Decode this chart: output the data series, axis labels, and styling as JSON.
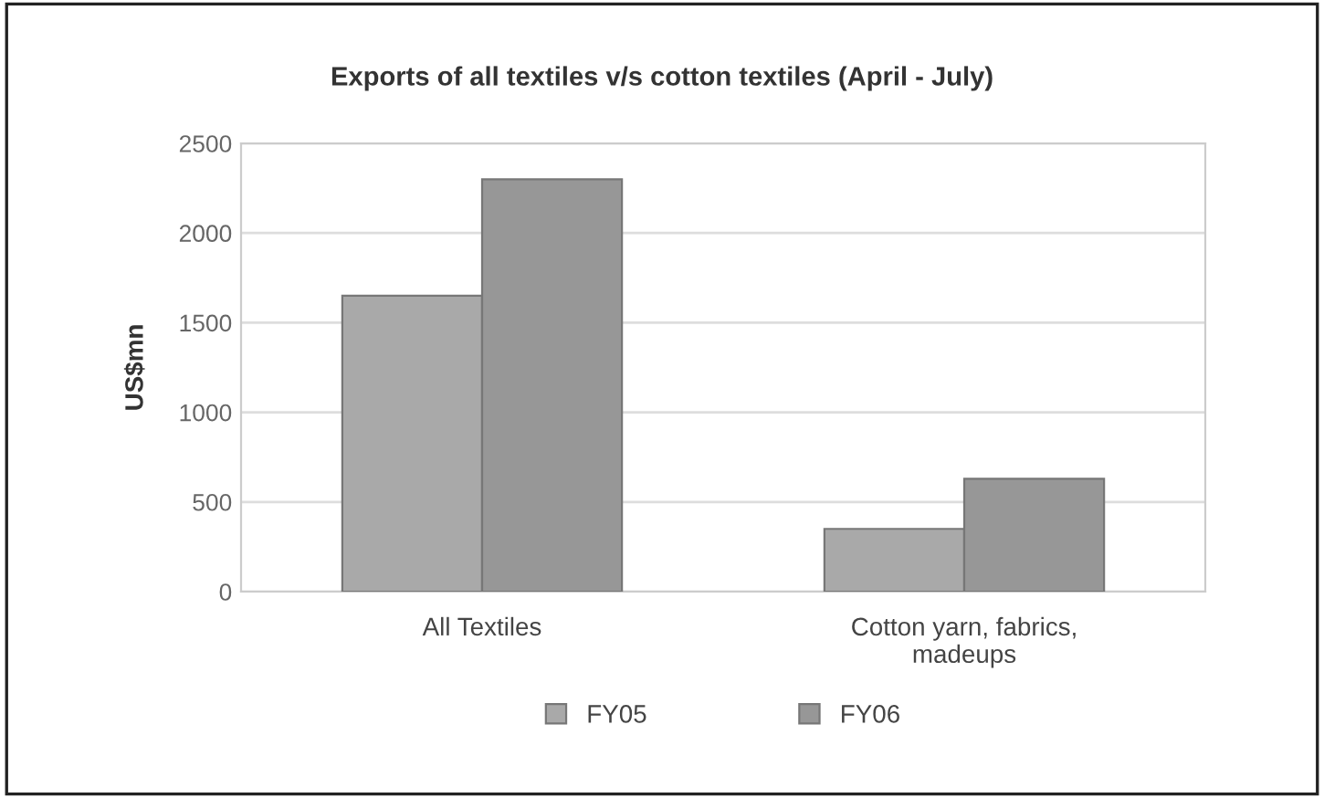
{
  "chart_data": {
    "type": "bar",
    "title": "Exports of all textiles v/s cotton textiles (April - July)",
    "ylabel": "US$mn",
    "categories": [
      "All Textiles",
      "Cotton yarn, fabrics,\nmadeups"
    ],
    "series": [
      {
        "name": "FY05",
        "color": "#a9a9a9",
        "values": [
          1650,
          350
        ]
      },
      {
        "name": "FY06",
        "color": "#979797",
        "values": [
          2300,
          630
        ]
      }
    ],
    "ylim": [
      0,
      2500
    ],
    "yticks": [
      0,
      500,
      1000,
      1500,
      2000,
      2500
    ],
    "grid": "y",
    "legend": "bottom"
  }
}
